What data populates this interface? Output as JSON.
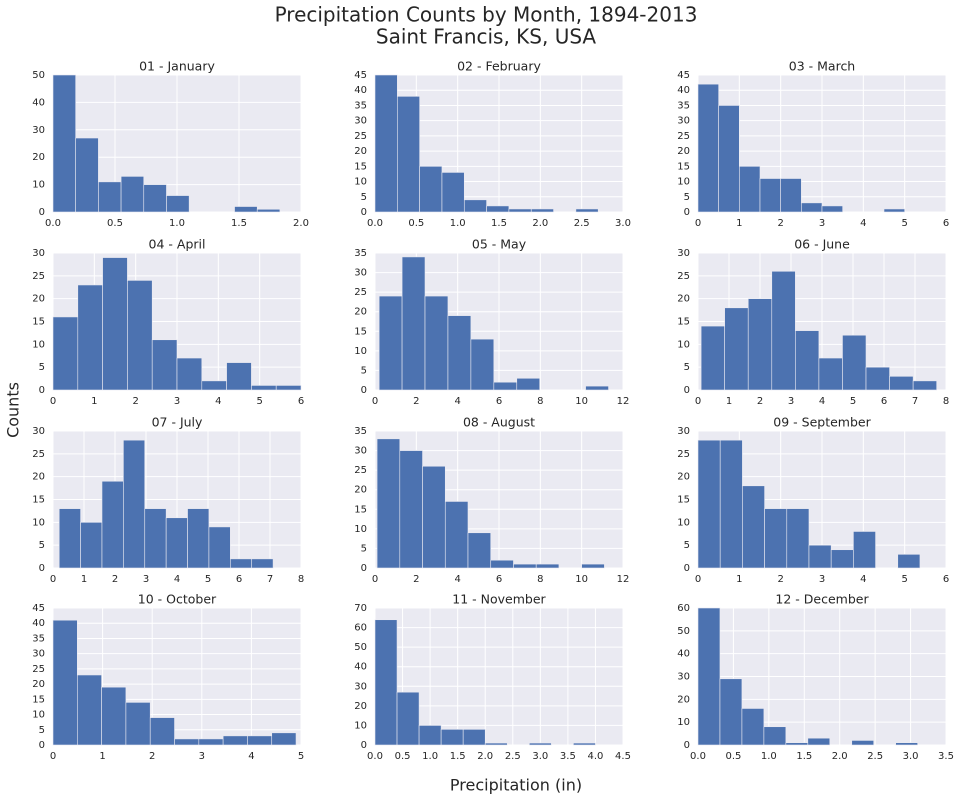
{
  "title": "Precipitation Counts by Month, 1894-2013",
  "subtitle": "Saint Francis, KS, USA",
  "xlabel": "Precipitation (in)",
  "ylabel": "Counts",
  "chart_data": [
    {
      "type": "histogram",
      "title": "01 - January",
      "color": "#4c72b0",
      "grid": true,
      "bins": [
        0,
        0.183,
        0.366,
        0.549,
        0.732,
        0.915,
        1.098,
        1.281,
        1.464,
        1.647,
        1.83
      ],
      "counts": [
        50,
        27,
        11,
        13,
        10,
        6,
        0,
        0,
        2,
        1
      ],
      "xlim": [
        0,
        2
      ],
      "xticks": [
        {
          "value": 0,
          "label": "0.0"
        },
        0.5,
        {
          "value": 1,
          "label": "1.0"
        },
        1.5,
        {
          "value": 2,
          "label": "2.0"
        }
      ],
      "ylim": [
        0,
        50
      ],
      "yticks": [
        0,
        10,
        20,
        30,
        40,
        50
      ]
    },
    {
      "type": "histogram",
      "title": "02 - February",
      "color": "#4c72b0",
      "grid": true,
      "bins": [
        0,
        0.27,
        0.54,
        0.81,
        1.08,
        1.35,
        1.62,
        1.89,
        2.16,
        2.43,
        2.7
      ],
      "counts": [
        45,
        38,
        15,
        13,
        4,
        2,
        1,
        1,
        0,
        1
      ],
      "xlim": [
        0,
        3
      ],
      "xticks": [
        {
          "value": 0,
          "label": "0.0"
        },
        0.5,
        {
          "value": 1,
          "label": "1.0"
        },
        1.5,
        {
          "value": 2,
          "label": "2.0"
        },
        2.5,
        {
          "value": 3,
          "label": "3.0"
        }
      ],
      "ylim": [
        0,
        45
      ],
      "yticks": [
        0,
        5,
        10,
        15,
        20,
        25,
        30,
        35,
        40,
        45
      ]
    },
    {
      "type": "histogram",
      "title": "03 - March",
      "color": "#4c72b0",
      "grid": true,
      "bins": [
        0,
        0.5,
        1,
        1.5,
        2,
        2.5,
        3,
        3.5,
        4,
        4.5,
        5
      ],
      "counts": [
        42,
        35,
        15,
        11,
        11,
        3,
        2,
        0,
        0,
        1
      ],
      "xlim": [
        0,
        6
      ],
      "xticks": [
        0,
        1,
        2,
        3,
        4,
        5,
        6
      ],
      "ylim": [
        0,
        45
      ],
      "yticks": [
        0,
        5,
        10,
        15,
        20,
        25,
        30,
        35,
        40,
        45
      ]
    },
    {
      "type": "histogram",
      "title": "04 - April",
      "color": "#4c72b0",
      "grid": true,
      "bins": [
        0,
        0.6,
        1.2,
        1.8,
        2.4,
        3,
        3.6,
        4.2,
        4.8,
        5.4,
        6
      ],
      "counts": [
        16,
        23,
        29,
        24,
        11,
        7,
        2,
        6,
        1,
        1
      ],
      "xlim": [
        0,
        6
      ],
      "xticks": [
        0,
        1,
        2,
        3,
        4,
        5,
        6
      ],
      "ylim": [
        0,
        30
      ],
      "yticks": [
        0,
        5,
        10,
        15,
        20,
        25,
        30
      ]
    },
    {
      "type": "histogram",
      "title": "05 - May",
      "color": "#4c72b0",
      "grid": true,
      "bins": [
        0.2,
        1.31,
        2.42,
        3.53,
        4.64,
        5.75,
        6.86,
        7.97,
        9.08,
        10.19,
        11.3
      ],
      "counts": [
        24,
        34,
        24,
        19,
        13,
        2,
        3,
        0,
        0,
        1
      ],
      "xlim": [
        0,
        12
      ],
      "xticks": [
        0,
        2,
        4,
        6,
        8,
        10,
        12
      ],
      "ylim": [
        0,
        35
      ],
      "yticks": [
        0,
        5,
        10,
        15,
        20,
        25,
        30,
        35
      ]
    },
    {
      "type": "histogram",
      "title": "06 - June",
      "color": "#4c72b0",
      "grid": true,
      "bins": [
        0.1,
        0.86,
        1.62,
        2.38,
        3.14,
        3.9,
        4.66,
        5.42,
        6.18,
        6.94,
        7.7
      ],
      "counts": [
        14,
        18,
        20,
        26,
        13,
        7,
        12,
        5,
        3,
        2
      ],
      "xlim": [
        0,
        8
      ],
      "xticks": [
        0,
        1,
        2,
        3,
        4,
        5,
        6,
        7,
        8
      ],
      "ylim": [
        0,
        30
      ],
      "yticks": [
        0,
        5,
        10,
        15,
        20,
        25,
        30
      ]
    },
    {
      "type": "histogram",
      "title": "07 - July",
      "color": "#4c72b0",
      "grid": true,
      "bins": [
        0.2,
        0.89,
        1.58,
        2.27,
        2.96,
        3.65,
        4.34,
        5.03,
        5.72,
        6.41,
        7.1
      ],
      "counts": [
        13,
        10,
        19,
        28,
        13,
        11,
        13,
        9,
        2,
        2
      ],
      "xlim": [
        0,
        8
      ],
      "xticks": [
        0,
        1,
        2,
        3,
        4,
        5,
        6,
        7,
        8
      ],
      "ylim": [
        0,
        30
      ],
      "yticks": [
        0,
        5,
        10,
        15,
        20,
        25,
        30
      ]
    },
    {
      "type": "histogram",
      "title": "08 - August",
      "color": "#4c72b0",
      "grid": true,
      "bins": [
        0.1,
        1.2,
        2.3,
        3.4,
        4.5,
        5.6,
        6.7,
        7.8,
        8.9,
        10,
        11.1
      ],
      "counts": [
        33,
        30,
        26,
        17,
        9,
        2,
        1,
        1,
        0,
        1
      ],
      "xlim": [
        0,
        12
      ],
      "xticks": [
        0,
        2,
        4,
        6,
        8,
        10,
        12
      ],
      "ylim": [
        0,
        35
      ],
      "yticks": [
        0,
        5,
        10,
        15,
        20,
        25,
        30,
        35
      ]
    },
    {
      "type": "histogram",
      "title": "09 - September",
      "color": "#4c72b0",
      "grid": true,
      "bins": [
        0,
        0.537,
        1.074,
        1.611,
        2.148,
        2.685,
        3.222,
        3.759,
        4.296,
        4.833,
        5.37
      ],
      "counts": [
        28,
        28,
        18,
        13,
        13,
        5,
        4,
        8,
        0,
        3
      ],
      "xlim": [
        0,
        6
      ],
      "xticks": [
        0,
        1,
        2,
        3,
        4,
        5,
        6
      ],
      "ylim": [
        0,
        30
      ],
      "yticks": [
        0,
        5,
        10,
        15,
        20,
        25,
        30
      ]
    },
    {
      "type": "histogram",
      "title": "10 - October",
      "color": "#4c72b0",
      "grid": true,
      "bins": [
        0,
        0.49,
        0.98,
        1.47,
        1.96,
        2.45,
        2.94,
        3.43,
        3.92,
        4.41,
        4.9
      ],
      "counts": [
        41,
        23,
        19,
        14,
        9,
        2,
        2,
        3,
        3,
        4
      ],
      "xlim": [
        0,
        5
      ],
      "xticks": [
        0,
        1,
        2,
        3,
        4,
        5
      ],
      "ylim": [
        0,
        45
      ],
      "yticks": [
        0,
        5,
        10,
        15,
        20,
        25,
        30,
        35,
        40,
        45
      ]
    },
    {
      "type": "histogram",
      "title": "11 - November",
      "color": "#4c72b0",
      "grid": true,
      "bins": [
        0,
        0.4,
        0.8,
        1.2,
        1.6,
        2,
        2.4,
        2.8,
        3.2,
        3.6,
        4
      ],
      "counts": [
        64,
        27,
        10,
        8,
        8,
        1,
        0,
        1,
        0,
        1
      ],
      "xlim": [
        0,
        4.5
      ],
      "xticks": [
        {
          "value": 0,
          "label": "0.0"
        },
        0.5,
        {
          "value": 1,
          "label": "1.0"
        },
        1.5,
        {
          "value": 2,
          "label": "2.0"
        },
        2.5,
        {
          "value": 3,
          "label": "3.0"
        },
        3.5,
        {
          "value": 4,
          "label": "4.0"
        },
        4.5
      ],
      "ylim": [
        0,
        70
      ],
      "yticks": [
        0,
        10,
        20,
        30,
        40,
        50,
        60,
        70
      ]
    },
    {
      "type": "histogram",
      "title": "12 - December",
      "color": "#4c72b0",
      "grid": true,
      "bins": [
        0,
        0.31,
        0.62,
        0.93,
        1.24,
        1.55,
        1.86,
        2.17,
        2.48,
        2.79,
        3.1
      ],
      "counts": [
        60,
        29,
        16,
        8,
        1,
        3,
        0,
        2,
        0,
        1
      ],
      "xlim": [
        0,
        3.5
      ],
      "xticks": [
        {
          "value": 0,
          "label": "0.0"
        },
        0.5,
        {
          "value": 1,
          "label": "1.0"
        },
        1.5,
        {
          "value": 2,
          "label": "2.0"
        },
        2.5,
        {
          "value": 3,
          "label": "3.0"
        },
        3.5
      ],
      "ylim": [
        0,
        60
      ],
      "yticks": [
        0,
        10,
        20,
        30,
        40,
        50,
        60
      ]
    }
  ]
}
